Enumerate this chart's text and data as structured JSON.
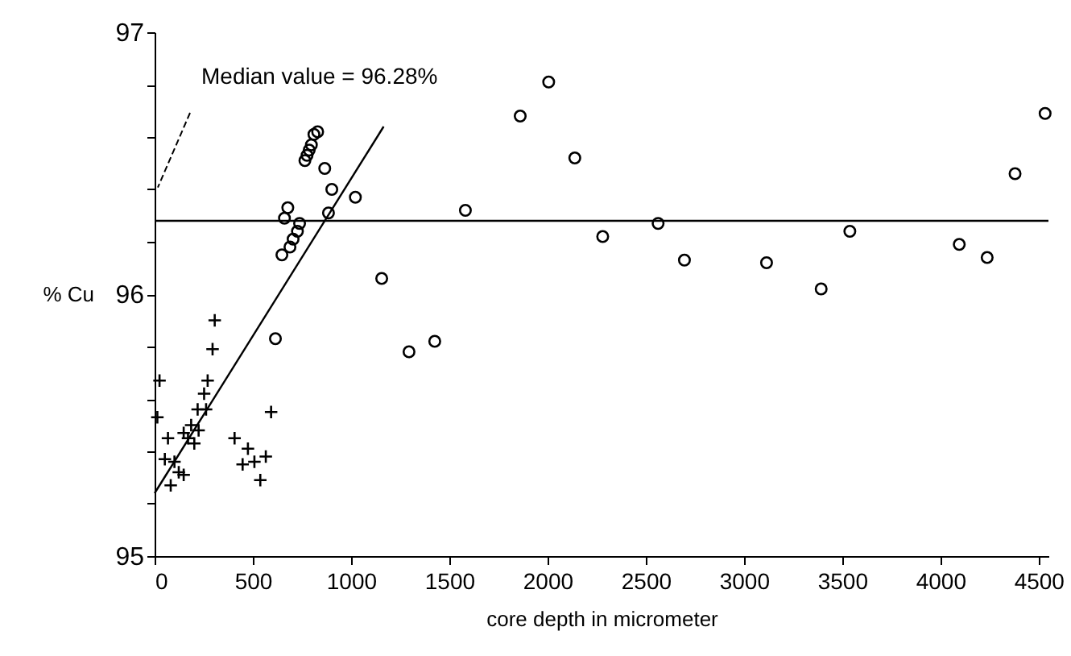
{
  "chart_data": {
    "type": "scatter",
    "xlabel": "core depth in micrometer",
    "ylabel": "% Cu",
    "xlim": [
      0,
      4550
    ],
    "ylim": [
      95,
      97
    ],
    "xticks": [
      0,
      500,
      1000,
      1500,
      2000,
      2500,
      3000,
      3500,
      4000,
      4500
    ],
    "yticks": [
      95,
      {
        "value": 95.2,
        "label": null
      },
      {
        "value": 95.4,
        "label": null
      },
      {
        "value": 95.6,
        "label": null
      },
      {
        "value": 95.8,
        "label": null
      },
      96,
      {
        "value": 96.2,
        "label": null
      },
      {
        "value": 96.4,
        "label": null
      },
      {
        "value": 96.6,
        "label": null
      },
      {
        "value": 96.8,
        "label": null
      },
      97
    ],
    "grid": false,
    "series": [
      {
        "color": "#000000",
        "marker": "cross",
        "x": [
          306,
          295,
          270,
          252,
          219,
          262,
          186,
          148,
          224,
          170,
          202,
          68,
          52,
          101,
          123,
          148,
          82,
          25,
          14,
          593,
          407,
          475,
          448,
          508,
          566,
          538
        ],
        "values": [
          95.9,
          95.79,
          95.67,
          95.62,
          95.56,
          95.56,
          95.5,
          95.47,
          95.48,
          95.45,
          95.43,
          95.45,
          95.37,
          95.36,
          95.32,
          95.31,
          95.27,
          95.67,
          95.53,
          95.55,
          95.45,
          95.41,
          95.35,
          95.36,
          95.38,
          95.29
        ]
      },
      {
        "color": "#000000",
        "marker": "circle",
        "x": [
          830,
          811,
          798,
          787,
          776,
          765,
          866,
          902,
          1022,
          885,
          678,
          661,
          738,
          727,
          705,
          689,
          648,
          615
        ],
        "values": [
          96.62,
          96.61,
          96.57,
          96.55,
          96.53,
          96.51,
          96.48,
          96.4,
          96.37,
          96.31,
          96.33,
          96.29,
          96.27,
          96.24,
          96.21,
          96.18,
          96.15,
          95.83
        ]
      },
      {
        "color": "#000000",
        "marker": "circle",
        "x": [
          1156,
          1295,
          1426,
          1582,
          1861,
          2006,
          2139,
          2281,
          2563,
          2697,
          3115,
          3393,
          3539,
          4096,
          4238,
          4380,
          4533
        ],
        "values": [
          96.06,
          95.78,
          95.82,
          96.32,
          96.68,
          96.81,
          96.52,
          96.22,
          96.27,
          96.13,
          96.12,
          96.02,
          96.24,
          96.19,
          96.14,
          96.46,
          96.69
        ]
      },
      {
        "type": "line",
        "color": "#000000",
        "x": [
          0,
          1166
        ],
        "values": [
          95.24,
          96.64
        ]
      }
    ],
    "ref_lines": [
      {
        "axis": "y",
        "value": 96.28,
        "label": "Median value = 96.28%",
        "color": "#000000"
      }
    ]
  }
}
